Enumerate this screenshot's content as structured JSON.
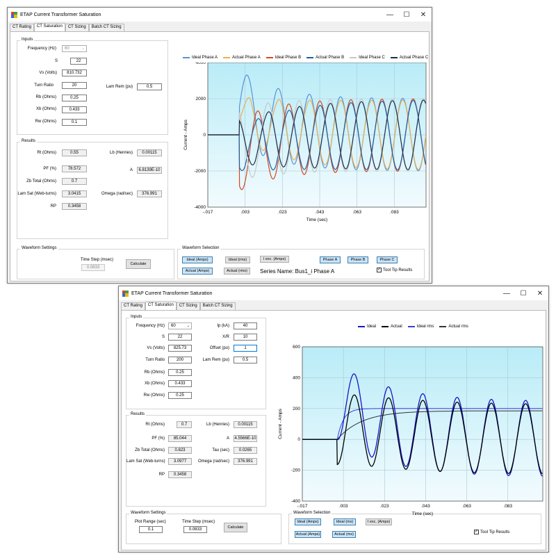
{
  "window1": {
    "title": "ETAP Current Transformer Saturation",
    "tabs": [
      "CT Rating",
      "CT Saturation",
      "CT Sizing",
      "Batch CT Sizing"
    ],
    "inputs_label": "Inputs",
    "freq_label": "Frequency (Hz)",
    "freq_value": "60",
    "s_label": "S",
    "s_value": "22",
    "vs_label": "Vs (Volts)",
    "vs_value": "810.732",
    "turn_label": "Turn Ratio",
    "turn_value": "20",
    "lamrem_label": "Lam Rem (pu)",
    "lamrem_value": "0.5",
    "rb_label": "Rb (Ohms)",
    "rb_value": "0.25",
    "xb_label": "Xb (Ohms)",
    "xb_value": "0.433",
    "rw_label": "Rw (Ohms)",
    "rw_value": "0.1",
    "results_label": "Results",
    "rt_label": "Rt (Ohms)",
    "rt_value": "0.55",
    "lb_label": "Lb (Henries)",
    "lb_value": "0.00115",
    "pf_label": "PF (%)",
    "pf_value": "78.572",
    "a_label": "A",
    "a_value": "6.8139E-10",
    "zb_label": "Zb Total (Ohms)",
    "zb_value": "0.7",
    "lamsat_label": "Lam Sat (Web-turns)",
    "lamsat_value": "3.0415",
    "omega_label": "Omega (rad/sec)",
    "omega_value": "376.991",
    "rp_label": "RP",
    "rp_value": "0.3458",
    "waveform_settings_label": "Waveform Settings",
    "timestep_label": "Time Step (msec)",
    "timestep_value": "0.0833",
    "calculate_label": "Calculate",
    "waveform_selection_label": "Waveform Selection",
    "btn_ideal_amps": "Ideal (Amps)",
    "btn_ideal_rms": "Ideal (rms)",
    "btn_iexc": "I exc. (Amps)",
    "btn_phase_a": "Phase A",
    "btn_phase_b": "Phase B",
    "btn_phase_c": "Phase C",
    "btn_actual_amps": "Actual (Amps)",
    "btn_actual_rms": "Actual (rms)",
    "series_name": "Series Name: Bus1_i Phase A",
    "tooltip_label": "Tool Tip Results"
  },
  "window2": {
    "title": "ETAP Current Transformer Saturation",
    "tabs": [
      "CT Rating",
      "CT Saturation",
      "CT Sizing",
      "Batch CT Sizing"
    ],
    "inputs_label": "Inputs",
    "freq_label": "Frequency (Hz)",
    "freq_value": "60",
    "ip_label": "Ip (kA)",
    "ip_value": "40",
    "s_label": "S",
    "s_value": "22",
    "xr_label": "X/R",
    "xr_value": "10",
    "vs_label": "Vs (Volts)",
    "vs_value": "825.73",
    "offset_label": "Offset (pu)",
    "offset_value": "1",
    "turn_label": "Turn Ratio",
    "turn_value": "200",
    "lamrem_label": "Lam Rem (pu)",
    "lamrem_value": "0.5",
    "rb_label": "Rb (Ohms)",
    "rb_value": "0.25",
    "xb_label": "Xb (Ohms)",
    "xb_value": "0.433",
    "rw_label": "Rw (Ohms)",
    "rw_value": "0.25",
    "results_label": "Results",
    "rt_label": "Rt (Ohms)",
    "rt_value": "0.7",
    "lb_label": "Lb (Henries)",
    "lb_value": "0.00115",
    "pf_label": "PF (%)",
    "pf_value": "85.044",
    "a_label": "A",
    "a_value": "4.5566E-10",
    "zb_label": "Zb Total (Ohms)",
    "zb_value": "0.823",
    "tau_label": "Tau (sec)",
    "tau_value": "0.0265",
    "lamsat_label": "Lam Sat (Web-turns)",
    "lamsat_value": "3.0977",
    "omega_label": "Omega (rad/sec)",
    "omega_value": "376.991",
    "rp_label": "RP",
    "rp_value": "0.3458",
    "waveform_settings_label": "Waveform Settings",
    "plotrange_label": "Plot Range (sec)",
    "plotrange_value": "0.1",
    "timestep_label": "Time Step (msec)",
    "timestep_value": "0.0833",
    "calculate_label": "Calculate",
    "waveform_selection_label": "Waveform Selection",
    "btn_ideal_amps": "Ideal (Amps)",
    "btn_ideal_rms": "Ideal (ms)",
    "btn_iexc": "I exc. (Amps)",
    "btn_actual_amps": "Actual (Amps)",
    "btn_actual_rms": "Actual (ms)",
    "tooltip_label": "Tool Tip Results"
  },
  "colors": {
    "ideal_a": "#5b8fd9",
    "actual_a": "#e8b04a",
    "ideal_b": "#d8451e",
    "actual_b": "#1d5fa6",
    "ideal_c": "#c8c8c8",
    "actual_c": "#1c2d4a",
    "chart_bg_top": "#b9ecf7",
    "chart_bg_bottom": "#f2fbfe",
    "w2_ideal": "#1515c8",
    "w2_actual": "#000000",
    "w2_ideal_rms": "#3a3ad8",
    "w2_actual_rms": "#333333"
  },
  "chart_data": [
    {
      "type": "line",
      "xlabel": "Time (sec)",
      "ylabel": "Current - Amps",
      "xlim": [
        -0.017,
        0.1
      ],
      "ylim": [
        -4000,
        4000
      ],
      "xticks": [
        -0.017,
        0.003,
        0.023,
        0.043,
        0.063,
        0.083
      ],
      "xtick_labels": [
        "-.017",
        ".003",
        ".023",
        ".043",
        ".063",
        ".083"
      ],
      "yticks": [
        -4000,
        -2000,
        0,
        2000,
        4000
      ],
      "ytick_labels": [
        "-4000",
        "-2000",
        "0",
        "2000",
        "4000"
      ],
      "grid": true,
      "legend_position": "top",
      "series": [
        {
          "name": "Ideal Phase A",
          "amplitude": 2000,
          "phase_deg": 0,
          "offset": 1600,
          "saturating": false
        },
        {
          "name": "Actual Phase A",
          "amplitude": 2000,
          "phase_deg": 0,
          "offset": 1600,
          "saturating": true
        },
        {
          "name": "Ideal Phase B",
          "amplitude": 2000,
          "phase_deg": -120,
          "offset": -1100,
          "saturating": false
        },
        {
          "name": "Actual Phase B",
          "amplitude": 2000,
          "phase_deg": -120,
          "offset": -1100,
          "saturating": true
        },
        {
          "name": "Ideal Phase C",
          "amplitude": 2000,
          "phase_deg": 120,
          "offset": -500,
          "saturating": false
        },
        {
          "name": "Actual Phase C",
          "amplitude": 2000,
          "phase_deg": 120,
          "offset": -500,
          "saturating": true
        }
      ],
      "fault_start": 0.0
    },
    {
      "type": "line",
      "xlabel": "Time (sec)",
      "ylabel": "Current - Amps",
      "xlim": [
        -0.017,
        0.1
      ],
      "ylim": [
        -400,
        600
      ],
      "xticks": [
        -0.017,
        0.003,
        0.023,
        0.043,
        0.063,
        0.083
      ],
      "xtick_labels": [
        "-.017",
        ".003",
        ".023",
        ".043",
        ".063",
        ".083"
      ],
      "yticks": [
        -400,
        -200,
        0,
        200,
        400,
        600
      ],
      "ytick_labels": [
        "-400",
        "-200",
        "0",
        "200",
        "400",
        "600"
      ],
      "grid": true,
      "legend_position": "top",
      "series": [
        {
          "name": "Ideal",
          "peak": 490,
          "steady": 283,
          "tau": 0.0265
        },
        {
          "name": "Actual",
          "peak": 455,
          "steady": 283,
          "tau": 0.0265
        },
        {
          "name": "Ideal rms",
          "level": 200
        },
        {
          "name": "Actual rms",
          "level": 185
        }
      ],
      "fault_start": 0.0
    }
  ]
}
